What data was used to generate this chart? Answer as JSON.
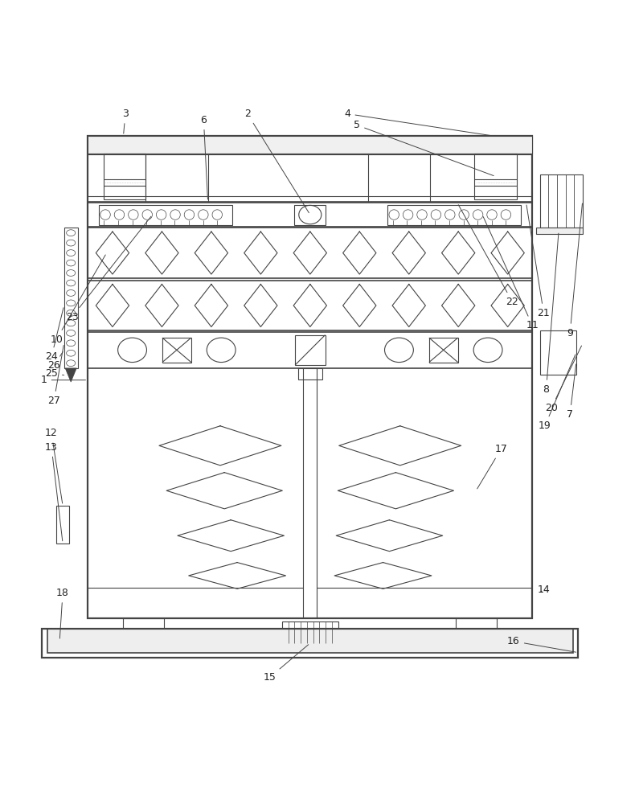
{
  "fig_width": 7.95,
  "fig_height": 10.0,
  "bg_color": "#ffffff",
  "lc": "#444444",
  "lw": 0.8,
  "lw2": 1.2,
  "lw3": 1.6,
  "ml": 0.13,
  "mr": 0.84,
  "mt": 0.925,
  "mb": 0.155,
  "label_fs": 9
}
